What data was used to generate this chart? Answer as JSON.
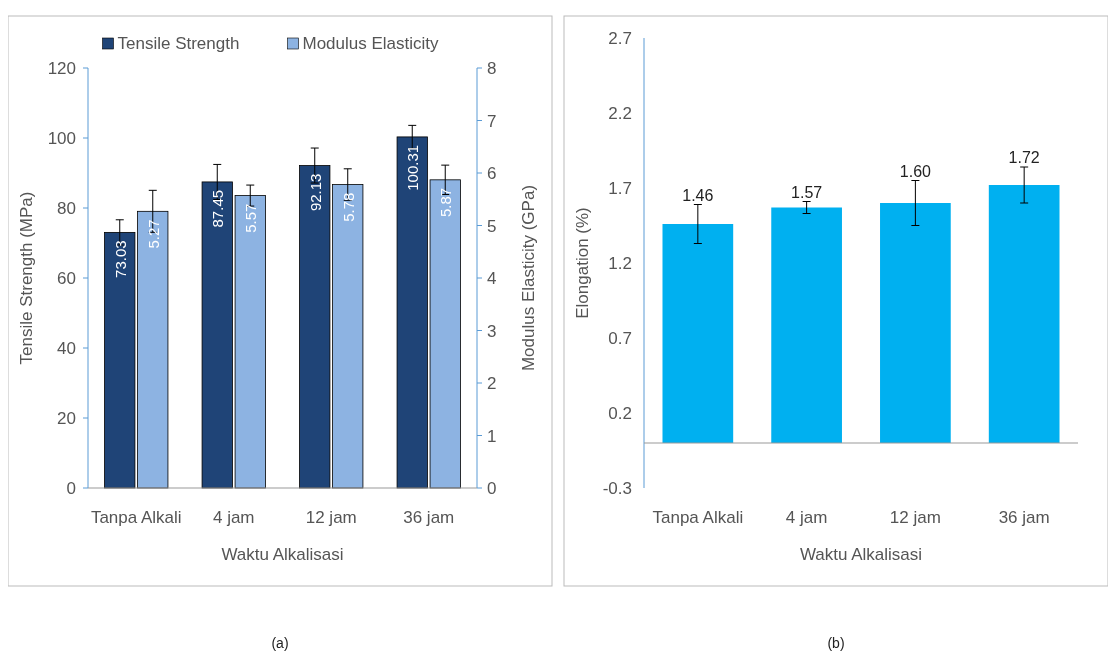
{
  "chart_data": [
    {
      "type": "bar",
      "categories": [
        "Tanpa Alkali",
        "4 jam",
        "12 jam",
        "36 jam"
      ],
      "xlabel": "Waktu Alkalisasi",
      "ylabel": "Tensile Strength (MPa)",
      "y2label": "Modulus Elasticity (GPa)",
      "ylim": [
        0,
        120
      ],
      "yticks": [
        0,
        20,
        40,
        60,
        80,
        100,
        120
      ],
      "y2lim": [
        0,
        8
      ],
      "y2ticks": [
        0,
        1,
        2,
        3,
        4,
        5,
        6,
        7,
        8
      ],
      "legend": "top",
      "data_labels": true,
      "grid": false,
      "annotations": [
        "(a)"
      ],
      "series": [
        {
          "name": "Tensile Strength",
          "color": "#1f4477",
          "values": [
            73.03,
            87.45,
            92.13,
            100.31
          ],
          "errors": [
            3.6,
            5,
            5,
            3.3
          ]
        },
        {
          "name": "Modulus Elasticity",
          "color": "#8db3e2",
          "axis": "y2",
          "values": [
            5.27,
            5.57,
            5.78,
            5.87
          ],
          "errors": [
            0.4,
            0.2,
            0.3,
            0.28
          ]
        }
      ]
    },
    {
      "type": "bar",
      "categories": [
        "Tanpa Alkali",
        "4 jam",
        "12 jam",
        "36 jam"
      ],
      "xlabel": "Waktu Alkalisasi",
      "ylabel": "Elongation (%)",
      "ylim": [
        -0.3,
        2.7
      ],
      "yticks": [
        -0.3,
        0.2,
        0.7,
        1.2,
        1.7,
        2.2,
        2.7
      ],
      "grid": false,
      "annotations": [
        "(b)"
      ],
      "series": [
        {
          "color": "#00b0f0",
          "values": [
            1.46,
            1.57,
            1.6,
            1.72
          ],
          "value_labels": [
            "1.46",
            "1.57",
            "1.60",
            "1.72"
          ],
          "errors": [
            0.13,
            0.04,
            0.15,
            0.12
          ]
        }
      ]
    }
  ]
}
